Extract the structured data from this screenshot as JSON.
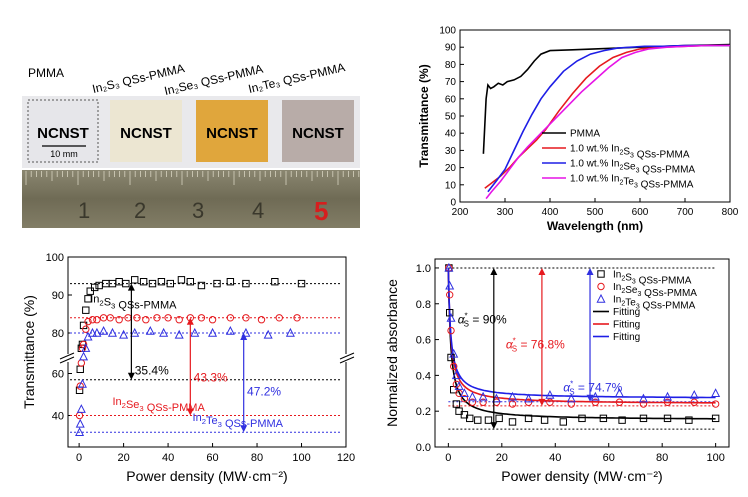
{
  "photo": {
    "sample_labels": [
      "PMMA",
      "In₂S₃ QSs-PMMA",
      "In₂Se₃ QSs-PMMA",
      "In₂Te₃ QSs-PMMA"
    ],
    "film_text": "NCNST",
    "scale_bar": "10 mm",
    "ruler_numbers": [
      "1",
      "2",
      "3",
      "4",
      "5"
    ],
    "colors": {
      "board": "#e9e9ec",
      "film_pmma": "#e6e6ea",
      "film_in2s3": "#ece6d2",
      "film_in2se3": "#e0a63c",
      "film_in2te3": "#b8aca8",
      "ruler": "#7e7a62",
      "ruler_five": "#d61e1e"
    }
  },
  "chart_data": [
    {
      "id": "transmittance-spectra",
      "type": "line",
      "xlabel": "Wavelength (nm)",
      "ylabel": "Transmittance (%)",
      "xlim": [
        200,
        800
      ],
      "ylim": [
        0,
        100
      ],
      "xticks": [
        200,
        300,
        400,
        500,
        600,
        700,
        800
      ],
      "yticks": [
        0,
        10,
        20,
        30,
        40,
        50,
        60,
        70,
        80,
        90,
        100
      ],
      "legend_position": "bottom-right",
      "series": [
        {
          "name": "PMMA",
          "color": "#000000",
          "x": [
            252,
            258,
            262,
            268,
            275,
            285,
            295,
            305,
            320,
            335,
            350,
            365,
            380,
            400,
            450,
            500,
            600,
            700,
            800
          ],
          "y": [
            28,
            60,
            68,
            66,
            67,
            69,
            68,
            70,
            71,
            73,
            77,
            82,
            86,
            88,
            88.5,
            89,
            90,
            91,
            91.5
          ]
        },
        {
          "name": "1.0 wt.% In₂S₃ QSs-PMMA",
          "color": "#e6191e",
          "x": [
            255,
            270,
            290,
            310,
            330,
            350,
            370,
            390,
            420,
            450,
            480,
            510,
            540,
            570,
            600,
            650,
            700,
            750,
            800
          ],
          "y": [
            8,
            11,
            15,
            20,
            26,
            31,
            36,
            42,
            53,
            63,
            72,
            79,
            84,
            87,
            89,
            90,
            90.5,
            91,
            91
          ]
        },
        {
          "name": "1.0 wt.% In₂Se₃ QSs-PMMA",
          "color": "#1e1ee6",
          "x": [
            262,
            280,
            300,
            320,
            340,
            360,
            380,
            400,
            430,
            460,
            490,
            520,
            550,
            580,
            610,
            650,
            700,
            750,
            800
          ],
          "y": [
            6,
            12,
            19,
            30,
            41,
            51,
            60,
            67,
            76,
            82,
            86,
            88,
            89.5,
            90,
            90.5,
            90.5,
            91,
            91,
            91
          ]
        },
        {
          "name": "1.0 wt.% In₂Te₃ QSs-PMMA",
          "color": "#e614e6",
          "x": [
            258,
            270,
            290,
            310,
            330,
            350,
            380,
            410,
            440,
            470,
            500,
            530,
            560,
            590,
            620,
            660,
            700,
            750,
            800
          ],
          "y": [
            2,
            6,
            12,
            19,
            26,
            32,
            40,
            48,
            56,
            64,
            71,
            78,
            84,
            87,
            89,
            90,
            90.5,
            91,
            91
          ]
        }
      ]
    },
    {
      "id": "transmittance-power",
      "type": "scatter",
      "xlabel": "Power density (MW·cm⁻²)",
      "ylabel": "Transmittance (%)",
      "xlim": [
        -5,
        120
      ],
      "xticks": [
        0,
        20,
        40,
        60,
        80,
        100,
        120
      ],
      "yticks": [
        40,
        60,
        80,
        90,
        100
      ],
      "axis_break": "between 60 and 80",
      "series": [
        {
          "name": "In₂S₃ QSs-PMMA",
          "color": "#000000",
          "marker": "square",
          "x": [
            0.2,
            0.5,
            1,
            1.5,
            2,
            3,
            4,
            5,
            7,
            9,
            12,
            15,
            18,
            21,
            25,
            29,
            33,
            37,
            41,
            46,
            50,
            55,
            62,
            68,
            75,
            88,
            100
          ],
          "y": [
            52,
            62,
            72,
            77,
            82,
            86,
            89,
            91,
            92,
            92.5,
            93,
            93,
            93.5,
            93,
            94,
            93.5,
            93,
            93.5,
            93,
            94,
            93.5,
            92.5,
            93,
            93.5,
            93,
            93.5,
            93
          ]
        },
        {
          "name": "In₂Se₃ QSs-PMMA",
          "color": "#e6191e",
          "marker": "circle",
          "x": [
            0.2,
            0.5,
            1,
            1.5,
            2,
            3,
            4,
            6,
            8,
            11,
            14,
            18,
            22,
            26,
            30,
            35,
            40,
            45,
            50,
            55,
            60,
            68,
            75,
            82,
            90,
            98
          ],
          "y": [
            40,
            54,
            65,
            72,
            77,
            81,
            83,
            83.5,
            83.5,
            84,
            84,
            83.5,
            84,
            84,
            83.5,
            84,
            84,
            83.5,
            84,
            84,
            83.5,
            84,
            84,
            83.5,
            84,
            84
          ]
        },
        {
          "name": "In₂Te₃ QSs-PMMA",
          "color": "#3030e0",
          "marker": "triangle",
          "x": [
            0.2,
            0.5,
            1,
            1.5,
            2,
            3,
            4,
            6,
            8,
            11,
            15,
            20,
            25,
            32,
            38,
            45,
            52,
            60,
            68,
            75,
            85,
            95
          ],
          "y": [
            32,
            36,
            43,
            55,
            68,
            76,
            79,
            80,
            80,
            80.5,
            80,
            79.5,
            80,
            80.5,
            80,
            79.5,
            80,
            80,
            80.5,
            80,
            79.5,
            80
          ]
        }
      ],
      "reference_lines": [
        {
          "y": 93,
          "color": "#000000"
        },
        {
          "y": 84,
          "color": "#e6191e"
        },
        {
          "y": 80,
          "color": "#3030e0"
        },
        {
          "y": 57,
          "color": "#000000"
        },
        {
          "y": 40,
          "color": "#e6191e"
        },
        {
          "y": 32,
          "color": "#3030e0"
        }
      ],
      "annotations": [
        {
          "text": "In₂S₃ QSs-PMMA",
          "color": "#000000"
        },
        {
          "text": "35.4%",
          "color": "#000000"
        },
        {
          "text": "43.3%",
          "color": "#e6191e"
        },
        {
          "text": "47.2%",
          "color": "#3030e0"
        },
        {
          "text": "In₂Se₃ QSs-PMMA",
          "color": "#e6191e"
        },
        {
          "text": "In₂Te₃ QSs-PMMA",
          "color": "#3030e0"
        }
      ]
    },
    {
      "id": "normalized-absorbance",
      "type": "scatter",
      "xlabel": "Power density (MW·cm⁻²)",
      "ylabel": "Normalized absorbance",
      "xlim": [
        -5,
        105
      ],
      "ylim": [
        0,
        1.05
      ],
      "xticks": [
        0,
        20,
        40,
        60,
        80,
        100
      ],
      "yticks": [
        0.0,
        0.2,
        0.4,
        0.6,
        0.8,
        1.0
      ],
      "legend_position": "top-right",
      "series": [
        {
          "name": "In₂S₃ QSs-PMMA",
          "color": "#000000",
          "marker": "square",
          "x": [
            0.2,
            0.5,
            1,
            2,
            3,
            4,
            6,
            8,
            11,
            15,
            19,
            24,
            30,
            36,
            43,
            50,
            58,
            65,
            73,
            82,
            90,
            100
          ],
          "y": [
            1.0,
            0.75,
            0.5,
            0.32,
            0.24,
            0.2,
            0.18,
            0.16,
            0.15,
            0.15,
            0.16,
            0.14,
            0.16,
            0.15,
            0.14,
            0.16,
            0.16,
            0.15,
            0.16,
            0.16,
            0.15,
            0.16
          ]
        },
        {
          "name": "In₂Se₃ QSs-PMMA",
          "color": "#e6191e",
          "marker": "circle",
          "x": [
            0.2,
            0.5,
            1,
            2,
            3,
            4,
            6,
            9,
            13,
            18,
            24,
            30,
            38,
            46,
            55,
            64,
            73,
            82,
            92,
            100
          ],
          "y": [
            1.0,
            0.85,
            0.65,
            0.45,
            0.35,
            0.3,
            0.27,
            0.25,
            0.25,
            0.25,
            0.24,
            0.25,
            0.25,
            0.24,
            0.25,
            0.25,
            0.24,
            0.25,
            0.25,
            0.24
          ]
        },
        {
          "name": "In₂Te₃ QSs-PMMA",
          "color": "#3030e0",
          "marker": "triangle",
          "x": [
            0.2,
            0.5,
            1,
            2,
            3,
            4,
            6,
            9,
            13,
            18,
            24,
            30,
            38,
            46,
            55,
            64,
            73,
            82,
            92,
            100
          ],
          "y": [
            1.0,
            0.9,
            0.72,
            0.52,
            0.4,
            0.34,
            0.3,
            0.28,
            0.28,
            0.27,
            0.28,
            0.27,
            0.29,
            0.27,
            0.28,
            0.3,
            0.27,
            0.28,
            0.29,
            0.3
          ]
        }
      ],
      "fits": [
        {
          "name": "Fitting",
          "color": "#000000",
          "baseline": 0.15
        },
        {
          "name": "Fitting",
          "color": "#e6191e",
          "baseline": 0.24
        },
        {
          "name": "Fitting",
          "color": "#1e1ee6",
          "baseline": 0.27
        }
      ],
      "reference_lines": [
        {
          "y": 1.0,
          "color": "#000000"
        },
        {
          "y": 0.1,
          "color": "#000000"
        },
        {
          "y": 0.23,
          "color": "#e6191e"
        },
        {
          "y": 0.253,
          "color": "#3030e0"
        }
      ],
      "annotations": [
        {
          "text": "α*S = 90%",
          "color": "#000000"
        },
        {
          "text": "α*S = 76.8%",
          "color": "#e6191e"
        },
        {
          "text": "α*S = 74.7%",
          "color": "#3030e0"
        }
      ]
    }
  ]
}
